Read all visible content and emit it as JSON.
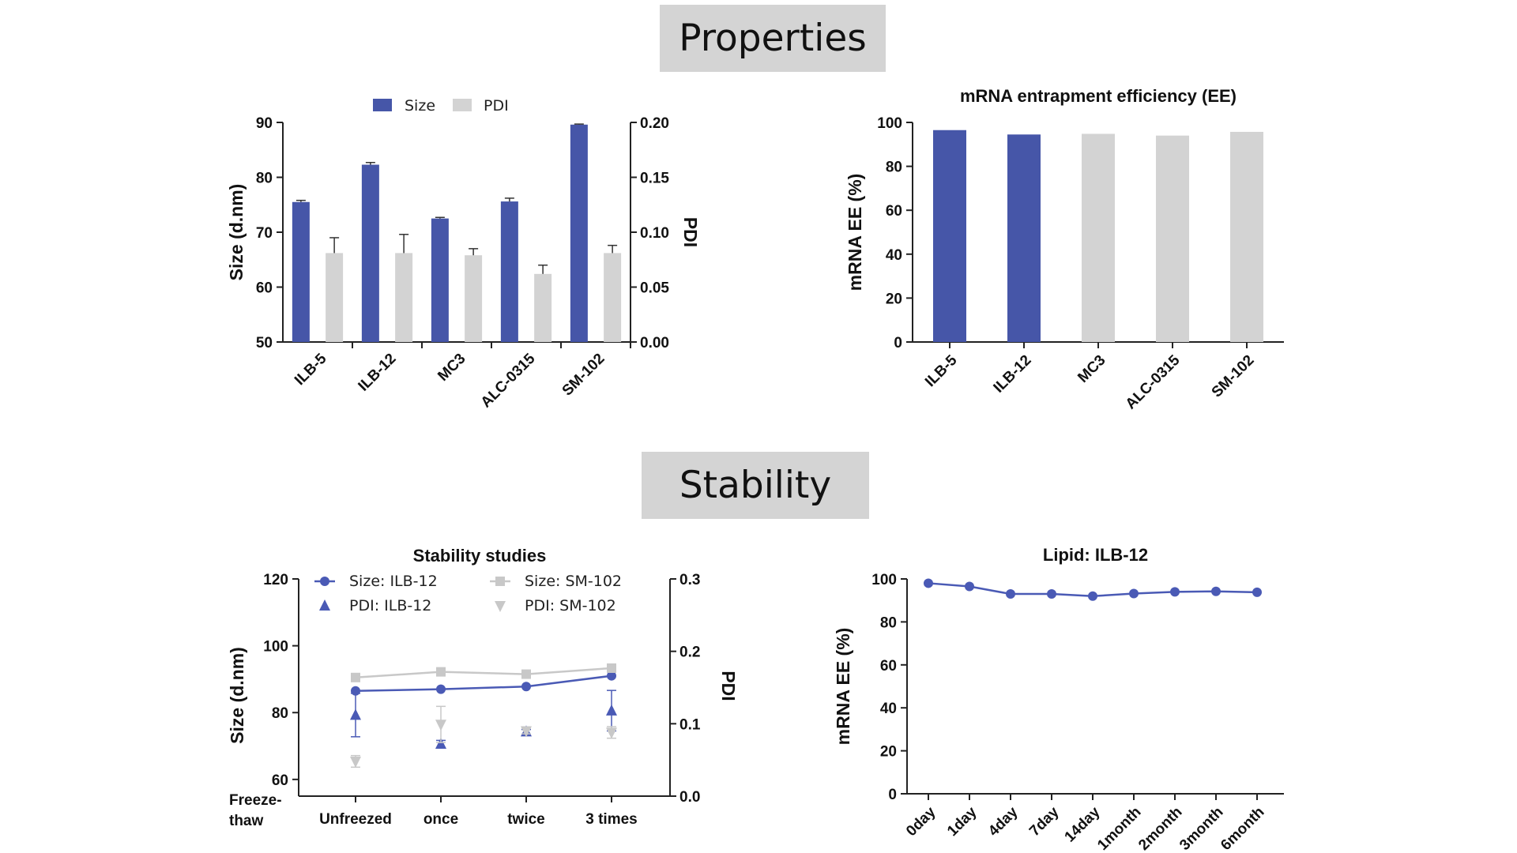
{
  "sections": {
    "properties": "Properties",
    "stability": "Stability"
  },
  "colors": {
    "blue": "#4656a8",
    "gray": "#d3d3d3",
    "lineBlue": "#4a5ab5",
    "lineGray": "#c8c8c8"
  },
  "chart_data": [
    {
      "id": "size-pdi",
      "type": "bar",
      "title": "",
      "categories": [
        "ILB-5",
        "ILB-12",
        "MC3",
        "ALC-0315",
        "SM-102"
      ],
      "xlabel": "",
      "ylabel": "Size (d.nm)",
      "y2label": "PDI",
      "ylim": [
        50,
        90
      ],
      "yticks": [
        50,
        60,
        70,
        80,
        90
      ],
      "y2lim": [
        0,
        0.2
      ],
      "y2ticks": [
        "0.00",
        "0.05",
        "0.10",
        "0.15",
        "0.20"
      ],
      "legend_position": "top",
      "series": [
        {
          "name": "Size",
          "axis": "left",
          "values": [
            75.5,
            82.3,
            72.5,
            75.6,
            89.6
          ],
          "errors": [
            0.3,
            0.4,
            0.2,
            0.6,
            0.1
          ]
        },
        {
          "name": "PDI",
          "axis": "right",
          "values": [
            0.081,
            0.081,
            0.079,
            0.062,
            0.081
          ],
          "errors": [
            0.014,
            0.017,
            0.006,
            0.008,
            0.007
          ]
        }
      ]
    },
    {
      "id": "ee",
      "type": "bar",
      "title": "mRNA entrapment efficiency (EE)",
      "categories": [
        "ILB-5",
        "ILB-12",
        "MC3",
        "ALC-0315",
        "SM-102"
      ],
      "xlabel": "",
      "ylabel": "mRNA EE (%)",
      "ylim": [
        0,
        100
      ],
      "yticks": [
        0,
        20,
        40,
        60,
        80,
        100
      ],
      "values": [
        96.5,
        94.5,
        94.8,
        94.0,
        95.7
      ],
      "bar_colors": [
        "blue",
        "blue",
        "gray",
        "gray",
        "gray"
      ]
    },
    {
      "id": "stability",
      "type": "line",
      "title": "Stability studies",
      "categories": [
        "Unfreezed",
        "once",
        "twice",
        "3 times"
      ],
      "xlabel": "Freeze-thaw",
      "xlabel_lines": [
        "Freeze-",
        "thaw"
      ],
      "ylabel": "Size (d.nm)",
      "y2label": "PDI",
      "ylim": [
        55,
        120
      ],
      "yticks": [
        60,
        80,
        100,
        120
      ],
      "y2lim": [
        0,
        0.3
      ],
      "y2ticks": [
        "0.0",
        "0.1",
        "0.2",
        "0.3"
      ],
      "legend_position": "top",
      "series": [
        {
          "name": "Size:  ILB-12",
          "axis": "left",
          "marker": "circle",
          "color": "lineBlue",
          "line": true,
          "values": [
            86.5,
            87.0,
            87.8,
            91.0
          ]
        },
        {
          "name": "Size:  SM-102",
          "axis": "left",
          "marker": "square",
          "color": "lineGray",
          "line": true,
          "values": [
            90.5,
            92.2,
            91.5,
            93.3
          ]
        },
        {
          "name": "PDI:  ILB-12",
          "axis": "right",
          "marker": "triangle-up",
          "color": "lineBlue",
          "line": false,
          "values": [
            0.112,
            0.072,
            0.089,
            0.118
          ],
          "errors": [
            0.03,
            0.005,
            0.003,
            0.028
          ]
        },
        {
          "name": "PDI:  SM-102",
          "axis": "right",
          "marker": "triangle-down",
          "color": "lineGray",
          "line": false,
          "values": [
            0.048,
            0.099,
            0.09,
            0.088
          ],
          "errors": [
            0.008,
            0.025,
            0.004,
            0.008
          ]
        }
      ]
    },
    {
      "id": "ilb12",
      "type": "line",
      "title": "Lipid: ILB-12",
      "categories": [
        "0day",
        "1day",
        "4day",
        "7day",
        "14day",
        "1month",
        "2month",
        "3month",
        "6month"
      ],
      "xlabel": "",
      "ylabel": "mRNA EE (%)",
      "ylim": [
        0,
        100
      ],
      "yticks": [
        0,
        20,
        40,
        60,
        80,
        100
      ],
      "series": [
        {
          "name": "",
          "marker": "circle",
          "color": "lineBlue",
          "values": [
            98.0,
            96.5,
            93.0,
            93.0,
            92.0,
            93.2,
            94.0,
            94.2,
            93.8
          ]
        }
      ]
    }
  ]
}
